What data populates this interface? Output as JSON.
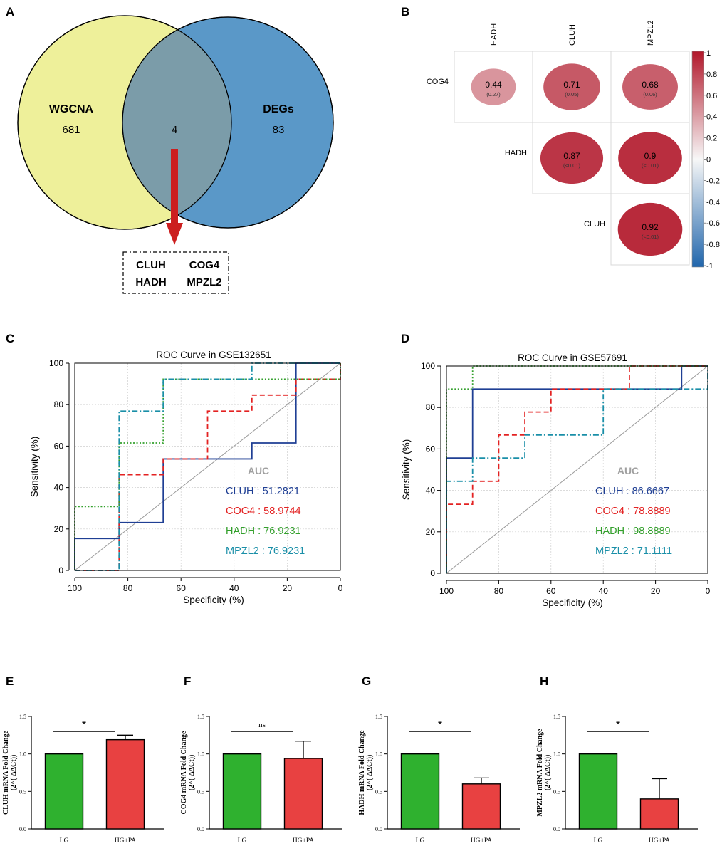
{
  "panel_letters": [
    "A",
    "B",
    "C",
    "D",
    "E",
    "F",
    "G",
    "H"
  ],
  "chart_data": [
    {
      "panel": "A",
      "type": "venn",
      "sets": [
        {
          "name": "WGCNA",
          "only_count": "681",
          "color": "#eef09a"
        },
        {
          "name": "DEGs",
          "only_count": "83",
          "color": "#5a98c8"
        }
      ],
      "intersection_count": "4",
      "overlap_color": "#7b9ca9",
      "arrow_color": "#cc1f1f",
      "intersection_genes": [
        "CLUH",
        "COG4",
        "HADH",
        "MPZL2"
      ]
    },
    {
      "panel": "B",
      "type": "heatmap",
      "subtype": "correlation",
      "col_labels": [
        "HADH",
        "CLUH",
        "MPZL2"
      ],
      "row_labels": [
        "COG4",
        "HADH",
        "CLUH"
      ],
      "cells": [
        {
          "row": 0,
          "col": 0,
          "value": 0.44,
          "label": "0.44",
          "p": "(0.27)"
        },
        {
          "row": 0,
          "col": 1,
          "value": 0.71,
          "label": "0.71",
          "p": "(0.05)"
        },
        {
          "row": 0,
          "col": 2,
          "value": 0.68,
          "label": "0.68",
          "p": "(0.06)"
        },
        {
          "row": 1,
          "col": 1,
          "value": 0.87,
          "label": "0.87",
          "p": "(<0.01)"
        },
        {
          "row": 1,
          "col": 2,
          "value": 0.9,
          "label": "0.9",
          "p": "(<0.01)"
        },
        {
          "row": 2,
          "col": 2,
          "value": 0.92,
          "label": "0.92",
          "p": "(<0.01)"
        }
      ],
      "colorbar_ticks": [
        "1",
        "0.8",
        "0.6",
        "0.4",
        "0.2",
        "0",
        "-0.2",
        "-0.4",
        "-0.6",
        "-0.8",
        "-1"
      ],
      "colorbar_range": [
        -1,
        1
      ],
      "colors": {
        "pos": "#b2182b",
        "mid": "#f7f7f7",
        "neg": "#2166ac"
      }
    },
    {
      "panel": "C",
      "type": "line",
      "subtype": "roc",
      "title": "ROC Curve in GSE132651",
      "xlabel": "Specificity (%)",
      "ylabel": "Sensitivity (%)",
      "xlim": [
        100,
        0
      ],
      "ylim": [
        0,
        100
      ],
      "xticks": [
        "100",
        "80",
        "60",
        "40",
        "20",
        "0"
      ],
      "yticks": [
        "0",
        "20",
        "40",
        "60",
        "80",
        "100"
      ],
      "grid": true,
      "auc_title": "AUC",
      "series": [
        {
          "name": "CLUH",
          "auc_text": "CLUH : 51.2821",
          "color": "#1f3f94",
          "dash": "solid",
          "points": [
            [
              100,
              0
            ],
            [
              100,
              15.4
            ],
            [
              83.3,
              15.4
            ],
            [
              83.3,
              23.1
            ],
            [
              66.7,
              23.1
            ],
            [
              66.7,
              53.8
            ],
            [
              33.3,
              53.8
            ],
            [
              33.3,
              61.5
            ],
            [
              16.7,
              61.5
            ],
            [
              16.7,
              100
            ],
            [
              0,
              100
            ]
          ]
        },
        {
          "name": "COG4",
          "auc_text": "COG4 : 58.9744",
          "color": "#e32222",
          "dash": "dashed",
          "points": [
            [
              100,
              0
            ],
            [
              83.3,
              0
            ],
            [
              83.3,
              46.2
            ],
            [
              66.7,
              46.2
            ],
            [
              66.7,
              53.8
            ],
            [
              50,
              53.8
            ],
            [
              50,
              76.9
            ],
            [
              33.3,
              76.9
            ],
            [
              33.3,
              84.6
            ],
            [
              16.7,
              84.6
            ],
            [
              16.7,
              92.3
            ],
            [
              0,
              92.3
            ],
            [
              0,
              100
            ]
          ]
        },
        {
          "name": "HADH",
          "auc_text": "HADH : 76.9231",
          "color": "#33a02c",
          "dash": "dotted",
          "points": [
            [
              100,
              0
            ],
            [
              100,
              30.8
            ],
            [
              83.3,
              30.8
            ],
            [
              83.3,
              61.5
            ],
            [
              66.7,
              61.5
            ],
            [
              66.7,
              92.3
            ],
            [
              0,
              92.3
            ],
            [
              0,
              100
            ]
          ]
        },
        {
          "name": "MPZL2",
          "auc_text": "MPZL2 : 76.9231",
          "color": "#1a8fa8",
          "dash": "dashdot",
          "points": [
            [
              100,
              0
            ],
            [
              83.3,
              0
            ],
            [
              83.3,
              76.9
            ],
            [
              66.7,
              76.9
            ],
            [
              66.7,
              92.3
            ],
            [
              33.3,
              92.3
            ],
            [
              33.3,
              100
            ],
            [
              0,
              100
            ]
          ]
        }
      ]
    },
    {
      "panel": "D",
      "type": "line",
      "subtype": "roc",
      "title": "ROC Curve in GSE57691",
      "xlabel": "Specificity (%)",
      "ylabel": "Sensitivity (%)",
      "xlim": [
        100,
        0
      ],
      "ylim": [
        0,
        100
      ],
      "xticks": [
        "100",
        "80",
        "60",
        "40",
        "20",
        "0"
      ],
      "yticks": [
        "0",
        "20",
        "40",
        "60",
        "80",
        "100"
      ],
      "grid": true,
      "auc_title": "AUC",
      "series": [
        {
          "name": "CLUH",
          "auc_text": "CLUH : 86.6667",
          "color": "#1f3f94",
          "dash": "solid",
          "points": [
            [
              100,
              0
            ],
            [
              100,
              55.6
            ],
            [
              90,
              55.6
            ],
            [
              90,
              88.9
            ],
            [
              10,
              88.9
            ],
            [
              10,
              100
            ],
            [
              0,
              100
            ]
          ]
        },
        {
          "name": "COG4",
          "auc_text": "COG4 : 78.8889",
          "color": "#e32222",
          "dash": "dashed",
          "points": [
            [
              100,
              0
            ],
            [
              100,
              33.3
            ],
            [
              90,
              33.3
            ],
            [
              90,
              44.4
            ],
            [
              80,
              44.4
            ],
            [
              80,
              66.7
            ],
            [
              70,
              66.7
            ],
            [
              70,
              77.8
            ],
            [
              60,
              77.8
            ],
            [
              60,
              88.9
            ],
            [
              30,
              88.9
            ],
            [
              30,
              100
            ],
            [
              0,
              100
            ]
          ]
        },
        {
          "name": "HADH",
          "auc_text": "HADH : 98.8889",
          "color": "#33a02c",
          "dash": "dotted",
          "points": [
            [
              100,
              0
            ],
            [
              100,
              88.9
            ],
            [
              90,
              88.9
            ],
            [
              90,
              100
            ],
            [
              0,
              100
            ]
          ]
        },
        {
          "name": "MPZL2",
          "auc_text": "MPZL2 : 71.1111",
          "color": "#1a8fa8",
          "dash": "dashdot",
          "points": [
            [
              100,
              0
            ],
            [
              100,
              44.4
            ],
            [
              90,
              44.4
            ],
            [
              90,
              55.6
            ],
            [
              70,
              55.6
            ],
            [
              70,
              66.7
            ],
            [
              40,
              66.7
            ],
            [
              40,
              88.9
            ],
            [
              0,
              88.9
            ],
            [
              0,
              100
            ]
          ]
        }
      ]
    },
    {
      "panel": "E",
      "type": "bar",
      "ylabel_line1": "CLUH mRNA Fold Change",
      "ylabel_line2": "(2^(-ΔΔCt))",
      "categories": [
        "LG",
        "HG+PA"
      ],
      "values": [
        1.0,
        1.19
      ],
      "errors": [
        0,
        0.06
      ],
      "ylim": [
        0,
        1.5
      ],
      "yticks": [
        "0.0",
        "0.5",
        "1.0",
        "1.5"
      ],
      "significance": "*",
      "colors": [
        "#2fb12f",
        "#e84141"
      ]
    },
    {
      "panel": "F",
      "type": "bar",
      "ylabel_line1": "COG4 mRNA Fold Change",
      "ylabel_line2": "(2^(-ΔΔCt))",
      "categories": [
        "LG",
        "HG+PA"
      ],
      "values": [
        1.0,
        0.94
      ],
      "errors": [
        0,
        0.23
      ],
      "ylim": [
        0,
        1.5
      ],
      "yticks": [
        "0.0",
        "0.5",
        "1.0",
        "1.5"
      ],
      "significance": "ns",
      "colors": [
        "#2fb12f",
        "#e84141"
      ]
    },
    {
      "panel": "G",
      "type": "bar",
      "ylabel_line1": "HADH mRNA Fold Change",
      "ylabel_line2": "(2^(-ΔΔCt))",
      "categories": [
        "LG",
        "HG+PA"
      ],
      "values": [
        1.0,
        0.6
      ],
      "errors": [
        0,
        0.08
      ],
      "ylim": [
        0,
        1.5
      ],
      "yticks": [
        "0.0",
        "0.5",
        "1.0",
        "1.5"
      ],
      "significance": "*",
      "colors": [
        "#2fb12f",
        "#e84141"
      ]
    },
    {
      "panel": "H",
      "type": "bar",
      "ylabel_line1": "MPZL2 mRNA Fold Change",
      "ylabel_line2": "(2^(-ΔΔCt))",
      "categories": [
        "LG",
        "HG+PA"
      ],
      "values": [
        1.0,
        0.4
      ],
      "errors": [
        0,
        0.27
      ],
      "ylim": [
        0,
        1.5
      ],
      "yticks": [
        "0.0",
        "0.5",
        "1.0",
        "1.5"
      ],
      "significance": "*",
      "colors": [
        "#2fb12f",
        "#e84141"
      ]
    }
  ]
}
